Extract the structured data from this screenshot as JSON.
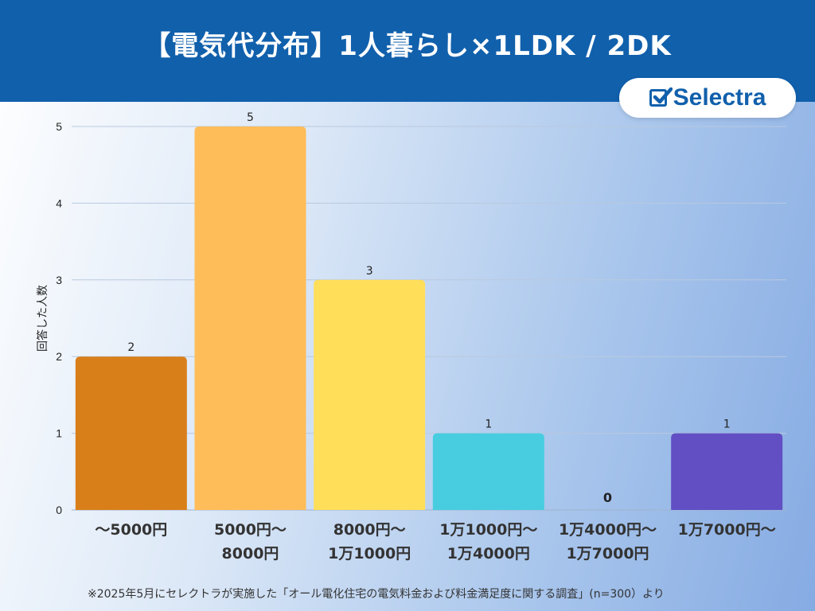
{
  "header": {
    "title": "【電気代分布】1人暮らし×1LDK / 2DK"
  },
  "brand": {
    "name": "Selectra",
    "icon": "checkbox-icon",
    "color": "#1160ac"
  },
  "footnote": "※2025年5月にセレクトラが実施した「オール電化住宅の電気料金および料金満足度に関する調査」(n=300）より",
  "chart_data": {
    "type": "bar",
    "title": "",
    "xlabel": "",
    "ylabel": "回答した人数",
    "ylim": [
      0,
      5
    ],
    "yticks": [
      0,
      1,
      2,
      3,
      4,
      5
    ],
    "grid": true,
    "categories": [
      [
        "〜5000円"
      ],
      [
        "5000円〜",
        "8000円"
      ],
      [
        "8000円〜",
        "1万1000円"
      ],
      [
        "1万1000円〜",
        "1万4000円"
      ],
      [
        "1万4000円〜",
        "1万7000円"
      ],
      [
        "1万7000円〜"
      ]
    ],
    "values": [
      2,
      5,
      3,
      1,
      0,
      1
    ],
    "colors": [
      "#d97f1a",
      "#ffbd59",
      "#ffde59",
      "#48cde0",
      "#7d6bd6",
      "#624fc4"
    ]
  }
}
